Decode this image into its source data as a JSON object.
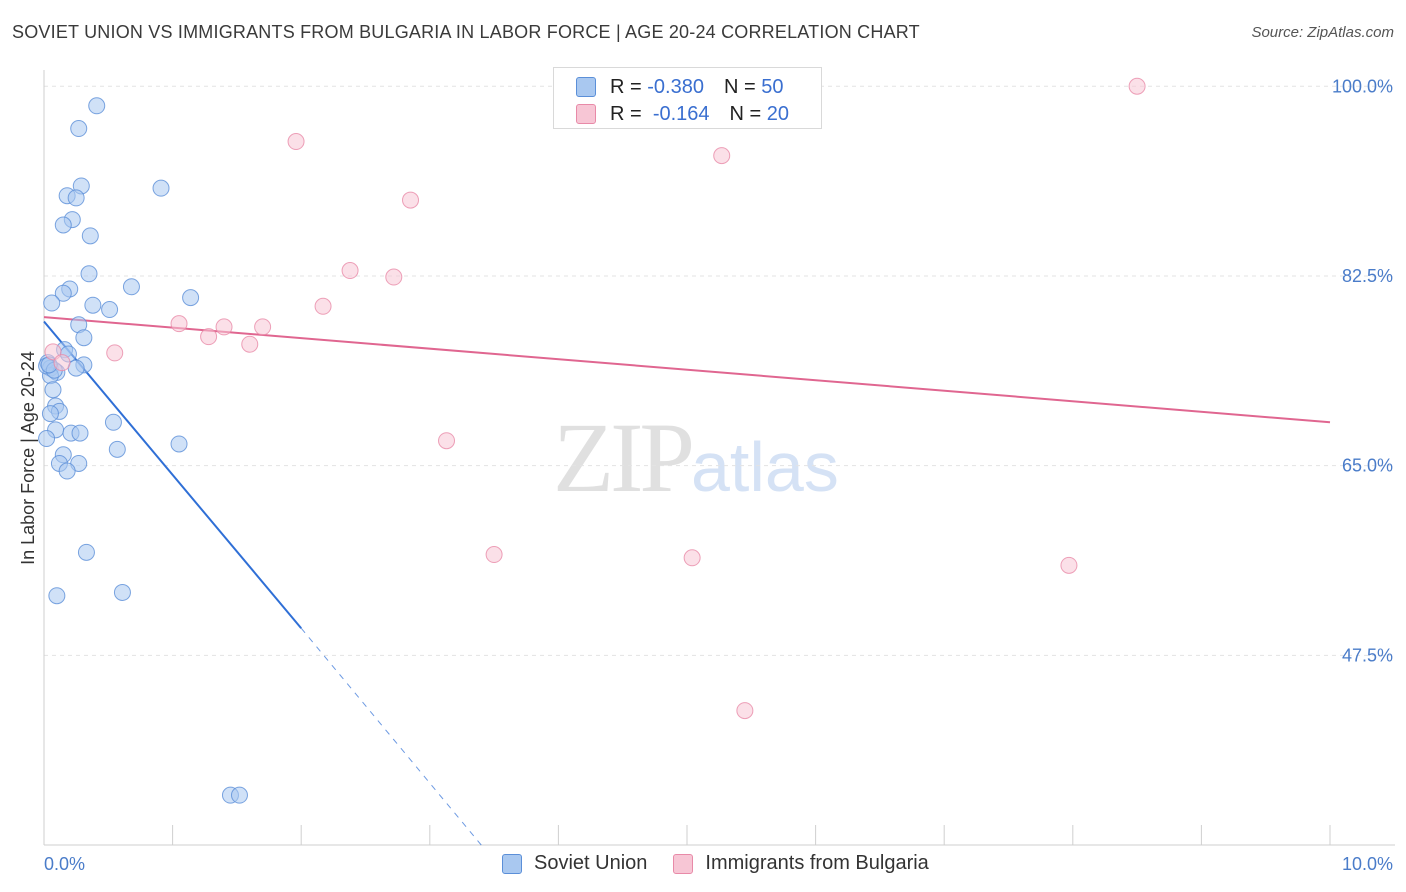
{
  "title": "SOVIET UNION VS IMMIGRANTS FROM BULGARIA IN LABOR FORCE | AGE 20-24 CORRELATION CHART",
  "source": "Source: ZipAtlas.com",
  "watermark": {
    "zip": "ZIP",
    "atlas": "atlas"
  },
  "legend": {
    "r_label": "R =",
    "n_label": "N =",
    "rows": [
      {
        "r": "-0.380",
        "n": "50"
      },
      {
        "r": "-0.164",
        "n": "20"
      }
    ]
  },
  "colors": {
    "soviet_fill": "#a9c8f0",
    "soviet_stroke": "#5b8fd8",
    "soviet_line": "#2f6fd6",
    "bulgaria_fill": "#f7c6d5",
    "bulgaria_stroke": "#e88aa8",
    "bulgaria_line": "#e06690",
    "tick_text": "#4a7cc9"
  },
  "chart_data": {
    "type": "scatter",
    "title": "SOVIET UNION VS IMMIGRANTS FROM BULGARIA IN LABOR FORCE | AGE 20-24 CORRELATION CHART",
    "xlabel": "",
    "ylabel": "In Labor Force | Age 20-24",
    "xlim": [
      0,
      10
    ],
    "ylim": [
      30.0,
      101.5
    ],
    "x_tick_labels": [
      {
        "v": 0,
        "label": "0.0%"
      },
      {
        "v": 10,
        "label": "10.0%"
      }
    ],
    "y_ticks": [
      {
        "v": 100,
        "label": "100.0%"
      },
      {
        "v": 82.5,
        "label": "82.5%"
      },
      {
        "v": 65,
        "label": "65.0%"
      },
      {
        "v": 47.5,
        "label": "47.5%"
      }
    ],
    "grid": true,
    "legend_position": "bottom",
    "series": [
      {
        "name": "Soviet Union",
        "points": [
          [
            0.41,
            98.2
          ],
          [
            0.27,
            96.1
          ],
          [
            0.29,
            90.8
          ],
          [
            0.18,
            89.9
          ],
          [
            0.25,
            89.7
          ],
          [
            0.22,
            87.7
          ],
          [
            0.15,
            87.2
          ],
          [
            0.36,
            86.2
          ],
          [
            0.35,
            82.7
          ],
          [
            0.2,
            81.3
          ],
          [
            0.15,
            80.9
          ],
          [
            0.06,
            80.0
          ],
          [
            0.38,
            79.8
          ],
          [
            0.51,
            79.4
          ],
          [
            0.27,
            78.0
          ],
          [
            0.31,
            76.8
          ],
          [
            0.16,
            75.7
          ],
          [
            0.19,
            75.3
          ],
          [
            0.31,
            74.3
          ],
          [
            0.25,
            74.0
          ],
          [
            0.03,
            74.5
          ],
          [
            0.05,
            74.0
          ],
          [
            0.1,
            73.6
          ],
          [
            0.05,
            73.3
          ],
          [
            0.07,
            72.0
          ],
          [
            0.09,
            70.5
          ],
          [
            0.12,
            70.0
          ],
          [
            0.05,
            69.8
          ],
          [
            0.09,
            68.3
          ],
          [
            0.21,
            68.0
          ],
          [
            0.28,
            68.0
          ],
          [
            0.02,
            67.5
          ],
          [
            0.54,
            69.0
          ],
          [
            0.57,
            66.5
          ],
          [
            1.05,
            67.0
          ],
          [
            0.15,
            66.0
          ],
          [
            0.12,
            65.2
          ],
          [
            0.27,
            65.2
          ],
          [
            0.18,
            64.5
          ],
          [
            0.33,
            57.0
          ],
          [
            0.61,
            53.3
          ],
          [
            0.1,
            53.0
          ],
          [
            0.91,
            90.6
          ],
          [
            1.14,
            80.5
          ],
          [
            0.68,
            81.5
          ],
          [
            1.45,
            34.6
          ],
          [
            1.52,
            34.6
          ],
          [
            0.02,
            74.2
          ],
          [
            0.08,
            73.8
          ],
          [
            0.04,
            74.3
          ]
        ]
      },
      {
        "name": "Immigrants from Bulgaria",
        "points": [
          [
            8.5,
            100.0
          ],
          [
            1.96,
            94.9
          ],
          [
            5.27,
            93.6
          ],
          [
            2.85,
            89.5
          ],
          [
            2.38,
            83.0
          ],
          [
            2.72,
            82.4
          ],
          [
            2.17,
            79.7
          ],
          [
            1.05,
            78.1
          ],
          [
            1.4,
            77.8
          ],
          [
            1.7,
            77.8
          ],
          [
            1.28,
            76.9
          ],
          [
            1.6,
            76.2
          ],
          [
            0.55,
            75.4
          ],
          [
            0.07,
            75.5
          ],
          [
            3.13,
            67.3
          ],
          [
            3.5,
            56.8
          ],
          [
            5.04,
            56.5
          ],
          [
            7.97,
            55.8
          ],
          [
            5.45,
            42.4
          ],
          [
            0.14,
            74.5
          ]
        ]
      }
    ],
    "trendlines": [
      {
        "series": "Soviet Union",
        "x_start": 0.0,
        "y_start": 78.3,
        "x_solid_end": 2.0,
        "y_solid_end": 50.0,
        "x_dash_end": 3.4,
        "y_dash_end": 30.0
      },
      {
        "series": "Immigrants from Bulgaria",
        "x_start": 0.0,
        "y_start": 78.7,
        "x_end": 10.0,
        "y_end": 69.0
      }
    ]
  }
}
